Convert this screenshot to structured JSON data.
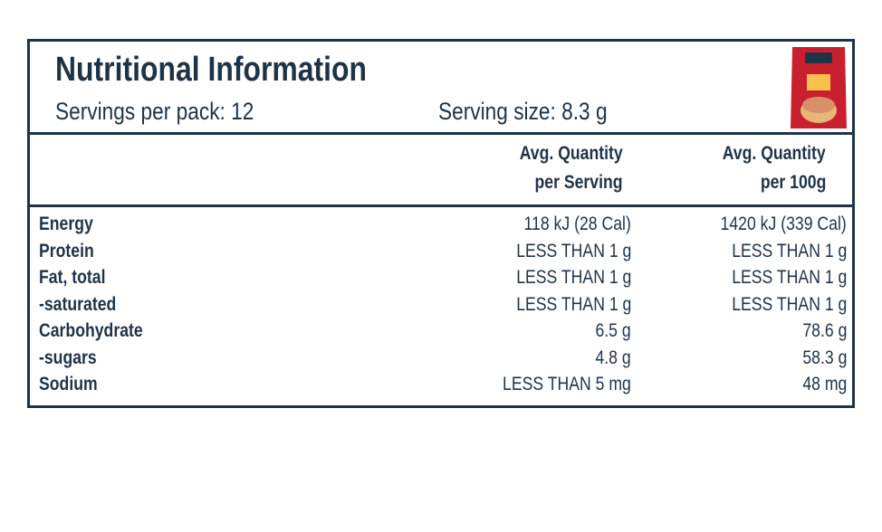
{
  "header": {
    "title": "Nutritional Information",
    "servings_per_pack": "Servings per pack: 12",
    "serving_size": "Serving size: 8.3 g"
  },
  "table": {
    "columns": [
      [
        "Avg. Quantity",
        "per Serving"
      ],
      [
        "Avg. Quantity",
        "per 100g"
      ]
    ],
    "rows": [
      [
        "Energy",
        "118 kJ (28 Cal)",
        "1420 kJ (339 Cal)"
      ],
      [
        "Protein",
        "LESS THAN 1 g",
        "LESS THAN 1 g"
      ],
      [
        "Fat, total",
        "LESS THAN 1 g",
        "LESS THAN 1 g"
      ],
      [
        "-saturated",
        "LESS THAN 1 g",
        "LESS THAN 1 g"
      ],
      [
        "Carbohydrate",
        "6.5 g",
        "78.6 g"
      ],
      [
        "-sugars",
        "4.8 g",
        "58.3 g"
      ],
      [
        "Sodium",
        "LESS THAN 5 mg",
        "48 mg"
      ]
    ]
  }
}
